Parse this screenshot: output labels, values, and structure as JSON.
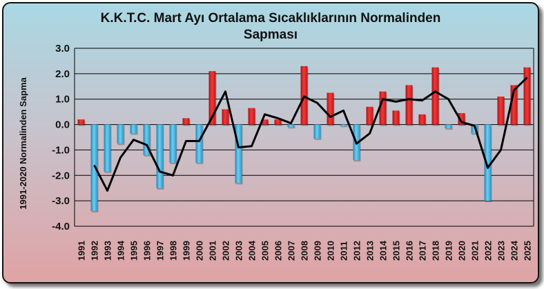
{
  "chart_data": {
    "type": "bar",
    "title": "K.K.T.C. Mart Ayı Ortalama Sıcaklıklarının Normalinden Sapması",
    "title_lines": [
      "K.K.T.C. Mart Ayı Ortalama Sıcaklıklarının Normalinden",
      "Sapması"
    ],
    "xlabel": "",
    "ylabel": "1991-2020 Normalinden Sapma",
    "ylim": [
      -4.0,
      3.0
    ],
    "yticks": [
      "3.0",
      "2.0",
      "1.0",
      "0.0",
      "-1.0",
      "-2.0",
      "-3.0",
      "-4.0"
    ],
    "grid": true,
    "legend": "none",
    "categories": [
      "1991",
      "1992",
      "1993",
      "1994",
      "1995",
      "1996",
      "1997",
      "1998",
      "1999",
      "2000",
      "2001",
      "2002",
      "2003",
      "2004",
      "2005",
      "2006",
      "2007",
      "2008",
      "2009",
      "2010",
      "2011",
      "2012",
      "2013",
      "2014",
      "2015",
      "2016",
      "2017",
      "2018",
      "2019",
      "2020",
      "2021",
      "2022",
      "2023",
      "2024",
      "2025"
    ],
    "values": [
      0.2,
      -3.4,
      -1.85,
      -0.75,
      -0.35,
      -1.2,
      -2.5,
      -1.5,
      0.25,
      -1.5,
      2.1,
      0.6,
      -2.3,
      0.65,
      0.2,
      0.2,
      -0.1,
      2.3,
      -0.55,
      1.25,
      -0.05,
      -1.4,
      0.7,
      1.3,
      0.55,
      1.55,
      0.4,
      2.25,
      -0.15,
      0.45,
      -0.35,
      -3.0,
      1.1,
      1.55,
      2.25
    ],
    "trend": [
      null,
      -1.6,
      -2.6,
      -1.3,
      -0.6,
      -0.8,
      -1.85,
      -2.0,
      -0.65,
      -0.65,
      0.3,
      1.3,
      -0.9,
      -0.85,
      0.4,
      0.25,
      0.05,
      1.1,
      0.85,
      0.3,
      0.55,
      -0.75,
      -0.35,
      1.0,
      0.9,
      1.0,
      0.95,
      1.3,
      1.0,
      0.1,
      -0.05,
      -1.7,
      -1.0,
      1.35,
      1.85
    ],
    "colors": {
      "positive": "#e02020",
      "negative": "#35a7d6",
      "line": "#000000",
      "grid": "#000000"
    }
  }
}
